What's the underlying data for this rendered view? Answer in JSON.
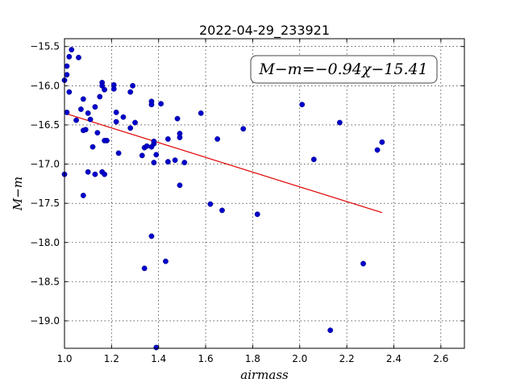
{
  "chart_data": {
    "type": "scatter",
    "title": "2022-04-29_233921",
    "xlabel": "airmass",
    "ylabel": "M−m",
    "xlim": [
      1.0,
      2.7
    ],
    "ylim": [
      -19.35,
      -15.4
    ],
    "x_ticks": [
      1.0,
      1.2,
      1.4,
      1.6,
      1.8,
      2.0,
      2.2,
      2.4,
      2.6
    ],
    "x_tick_labels": [
      "1.0",
      "1.2",
      "1.4",
      "1.6",
      "1.8",
      "2.0",
      "2.2",
      "2.4",
      "2.6"
    ],
    "y_ticks": [
      -15.5,
      -16.0,
      -16.5,
      -17.0,
      -17.5,
      -18.0,
      -18.5,
      -19.0
    ],
    "y_tick_labels": [
      "−15.5",
      "−16.0",
      "−16.5",
      "−17.0",
      "−17.5",
      "−18.0",
      "−18.5",
      "−19.0"
    ],
    "grid": true,
    "annotation": "M−m=−0.94χ−15.41",
    "annotation_position": "top-right",
    "point_color": "#0000cc",
    "fit_color": "#e00000",
    "points": {
      "x": [
        1.0,
        1.0,
        1.01,
        1.01,
        1.01,
        1.02,
        1.03,
        1.02,
        1.05,
        1.06,
        1.07,
        1.08,
        1.09,
        1.08,
        1.1,
        1.1,
        1.11,
        1.12,
        1.13,
        1.08,
        1.13,
        1.14,
        1.15,
        1.16,
        1.16,
        1.17,
        1.16,
        1.17,
        1.18,
        1.17,
        1.21,
        1.21,
        1.22,
        1.22,
        1.23,
        1.25,
        1.28,
        1.28,
        1.29,
        1.3,
        1.33,
        1.34,
        1.35,
        1.37,
        1.37,
        1.38,
        1.37,
        1.38,
        1.38,
        1.39,
        1.41,
        1.44,
        1.44,
        1.47,
        1.48,
        1.49,
        1.49,
        1.49,
        1.51,
        1.58,
        1.62,
        1.65,
        1.67,
        1.76,
        1.82,
        2.01,
        2.06,
        2.13,
        2.17,
        2.27,
        2.33,
        2.35,
        1.34,
        1.43,
        1.39
      ],
      "y": [
        -15.93,
        -17.13,
        -15.75,
        -15.86,
        -16.34,
        -15.63,
        -15.54,
        -16.08,
        -16.44,
        -15.64,
        -16.3,
        -16.17,
        -16.56,
        -17.4,
        -16.35,
        -17.1,
        -16.43,
        -16.78,
        -17.13,
        -16.57,
        -16.27,
        -16.6,
        -16.14,
        -15.96,
        -16.0,
        -16.05,
        -17.1,
        -17.13,
        -16.7,
        -16.7,
        -15.99,
        -16.04,
        -16.34,
        -16.46,
        -16.86,
        -16.4,
        -16.08,
        -16.54,
        -16.0,
        -16.47,
        -16.89,
        -16.79,
        -16.77,
        -16.2,
        -16.24,
        -16.74,
        -16.78,
        -16.71,
        -16.98,
        -16.88,
        -16.23,
        -16.68,
        -16.97,
        -16.95,
        -16.42,
        -16.61,
        -16.66,
        -17.27,
        -16.98,
        -16.35,
        -17.51,
        -16.68,
        -17.59,
        -16.55,
        -17.64,
        -16.24,
        -16.94,
        -19.12,
        -16.47,
        -18.27,
        -16.82,
        -16.72,
        -18.33,
        -18.24,
        -19.34
      ],
      "extra_x": [
        1.37
      ],
      "extra_y": [
        -17.92
      ]
    },
    "fit": {
      "slope": -0.94,
      "intercept": -15.41,
      "x_range": [
        1.0,
        2.35
      ]
    }
  }
}
